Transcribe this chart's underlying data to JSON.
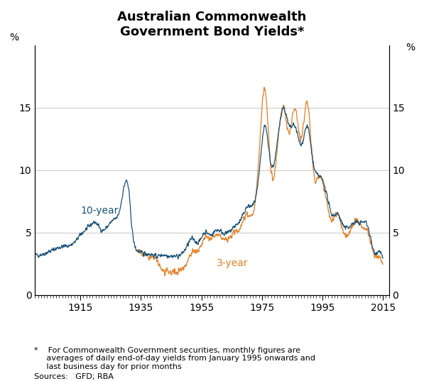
{
  "title": "Australian Commonwealth\nGovernment Bond Yields*",
  "ylabel_left": "%",
  "ylabel_right": "%",
  "ylim": [
    0,
    20
  ],
  "yticks": [
    0,
    5,
    10,
    15
  ],
  "xlim": [
    1900,
    2017
  ],
  "xticks": [
    1915,
    1935,
    1955,
    1975,
    1995,
    2015
  ],
  "color_10year": "#1a5276",
  "color_3year": "#e67e22",
  "label_10year": "10-year",
  "label_3year": "3-year",
  "footnote": "*    For Commonwealth Government securities, monthly figures are\n     averages of daily end-of-day yields from January 1995 onwards and\n     last business day for prior months",
  "sources": "Sources:   GFD; RBA",
  "background_color": "#ffffff",
  "grid_color": "#cccccc"
}
